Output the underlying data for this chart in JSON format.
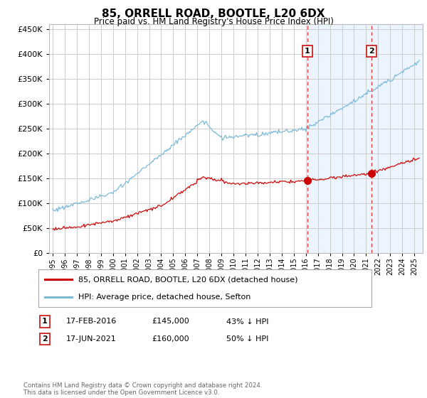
{
  "title": "85, ORRELL ROAD, BOOTLE, L20 6DX",
  "subtitle": "Price paid vs. HM Land Registry's House Price Index (HPI)",
  "legend_line1": "85, ORRELL ROAD, BOOTLE, L20 6DX (detached house)",
  "legend_line2": "HPI: Average price, detached house, Sefton",
  "annotation1_num": "1",
  "annotation1_date": "17-FEB-2016",
  "annotation1_price_str": "£145,000",
  "annotation1_pct": "43% ↓ HPI",
  "annotation2_num": "2",
  "annotation2_date": "17-JUN-2021",
  "annotation2_price_str": "£160,000",
  "annotation2_pct": "50% ↓ HPI",
  "footnote": "Contains HM Land Registry data © Crown copyright and database right 2024.\nThis data is licensed under the Open Government Licence v3.0.",
  "hpi_color": "#7ab8d8",
  "price_color": "#cc0000",
  "shading_color": "#ddeeff",
  "vline_color": "#ee3333",
  "grid_color": "#cccccc",
  "bg_color": "#ffffff",
  "ylim": [
    0,
    460000
  ],
  "xmin": 1994.7,
  "xmax": 2025.7,
  "sale1_x": 2016.12,
  "sale2_x": 2021.46,
  "sale1_price": 145000,
  "sale2_price": 160000
}
